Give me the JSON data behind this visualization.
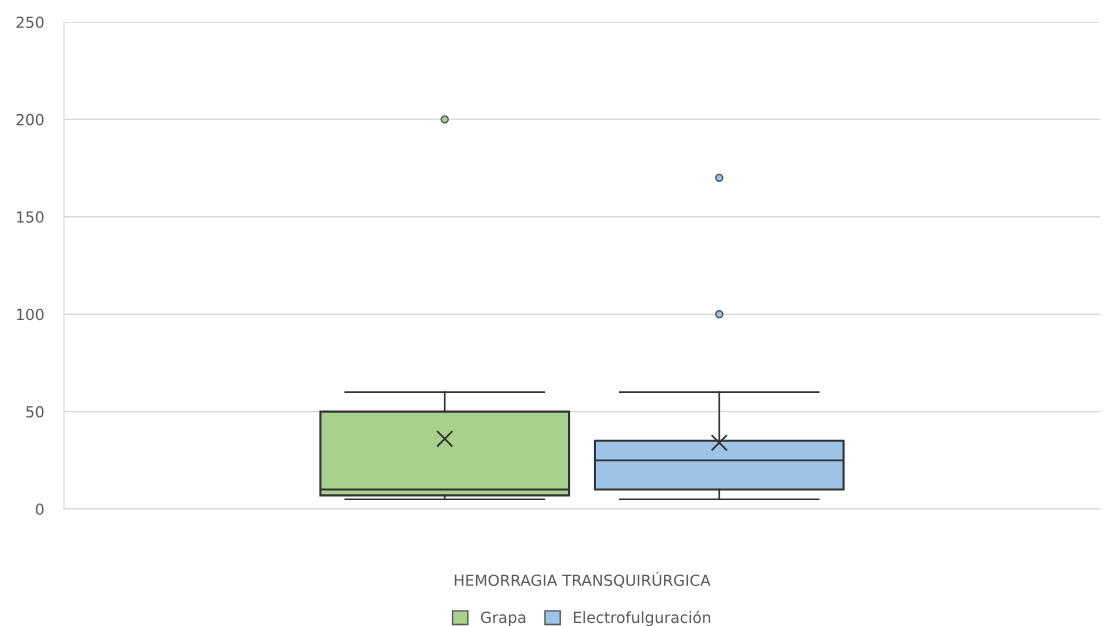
{
  "chart_data": {
    "type": "box",
    "xlabel": "HEMORRAGIA TRANSQUIRÚRGICA",
    "categories": [
      null
    ],
    "series": [
      {
        "name": "Grapa",
        "color": "#a9d18e",
        "boxes": [
          {
            "low": 5,
            "q1": 7,
            "median": 10,
            "q3": 50,
            "high": 60,
            "mean": 36,
            "outliers": [
              200
            ]
          }
        ]
      },
      {
        "name": "Electrofulguración",
        "color": "#9dc3e6",
        "boxes": [
          {
            "low": 5,
            "q1": 10,
            "median": 25,
            "q3": 35,
            "high": 60,
            "mean": 34,
            "outliers": [
              170,
              100
            ]
          }
        ]
      }
    ],
    "ylim": [
      0,
      250
    ],
    "yticks": [
      0,
      50,
      100,
      150,
      200,
      250
    ],
    "grid": "y",
    "legend": "bottom"
  }
}
